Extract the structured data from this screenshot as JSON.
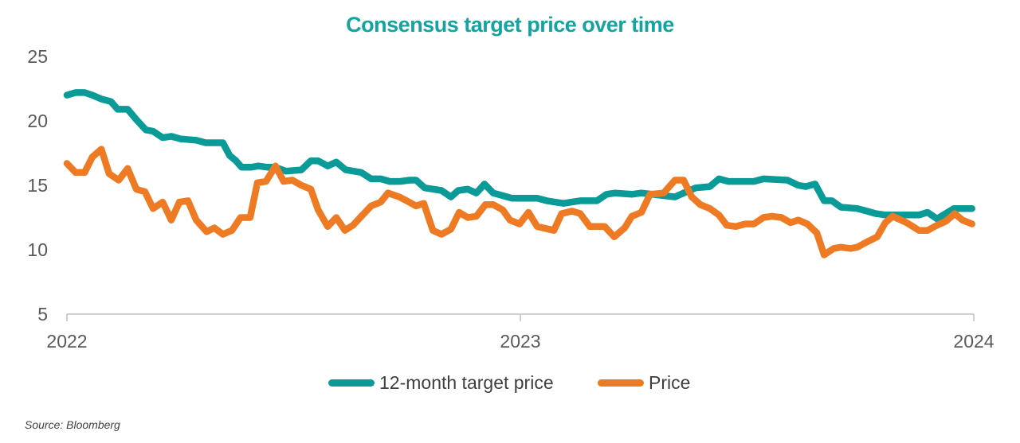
{
  "chart_data": {
    "type": "line",
    "title": "Consensus target price over time",
    "xlabel": "",
    "ylabel": "",
    "xlim": [
      2022,
      2024
    ],
    "ylim": [
      5,
      25
    ],
    "x_ticks": [
      "2022",
      "2023",
      "2024"
    ],
    "y_ticks": [
      "5",
      "10",
      "15",
      "20",
      "25"
    ],
    "grid": false,
    "legend_position": "bottom",
    "series": [
      {
        "name": "12-month target price",
        "color": "#0a9a97",
        "points": [
          [
            2022.0,
            22.0
          ],
          [
            2022.019,
            22.2
          ],
          [
            2022.039,
            22.2
          ],
          [
            2022.056,
            22.0
          ],
          [
            2022.076,
            21.7
          ],
          [
            2022.097,
            21.5
          ],
          [
            2022.112,
            20.9
          ],
          [
            2022.134,
            20.9
          ],
          [
            2022.153,
            20.1
          ],
          [
            2022.174,
            19.3
          ],
          [
            2022.19,
            19.2
          ],
          [
            2022.211,
            18.7
          ],
          [
            2022.23,
            18.8
          ],
          [
            2022.251,
            18.6
          ],
          [
            2022.285,
            18.5
          ],
          [
            2022.306,
            18.3
          ],
          [
            2022.344,
            18.3
          ],
          [
            2022.359,
            17.3
          ],
          [
            2022.373,
            16.9
          ],
          [
            2022.385,
            16.4
          ],
          [
            2022.406,
            16.4
          ],
          [
            2022.422,
            16.5
          ],
          [
            2022.443,
            16.4
          ],
          [
            2022.46,
            16.4
          ],
          [
            2022.483,
            16.1
          ],
          [
            2022.517,
            16.2
          ],
          [
            2022.538,
            16.9
          ],
          [
            2022.554,
            16.9
          ],
          [
            2022.575,
            16.5
          ],
          [
            2022.594,
            16.8
          ],
          [
            2022.615,
            16.2
          ],
          [
            2022.649,
            16.0
          ],
          [
            2022.671,
            15.5
          ],
          [
            2022.692,
            15.5
          ],
          [
            2022.712,
            15.3
          ],
          [
            2022.735,
            15.3
          ],
          [
            2022.756,
            15.4
          ],
          [
            2022.77,
            15.4
          ],
          [
            2022.789,
            14.8
          ],
          [
            2022.826,
            14.6
          ],
          [
            2022.847,
            14.1
          ],
          [
            2022.863,
            14.6
          ],
          [
            2022.884,
            14.7
          ],
          [
            2022.903,
            14.4
          ],
          [
            2022.921,
            15.1
          ],
          [
            2022.94,
            14.4
          ],
          [
            2022.981,
            14.0
          ],
          [
            2023.037,
            14.0
          ],
          [
            2023.058,
            13.8
          ],
          [
            2023.095,
            13.6
          ],
          [
            2023.132,
            13.8
          ],
          [
            2023.169,
            13.8
          ],
          [
            2023.19,
            14.3
          ],
          [
            2023.209,
            14.4
          ],
          [
            2023.246,
            14.3
          ],
          [
            2023.267,
            14.4
          ],
          [
            2023.341,
            14.1
          ],
          [
            2023.36,
            14.4
          ],
          [
            2023.387,
            14.8
          ],
          [
            2023.418,
            14.9
          ],
          [
            2023.438,
            15.5
          ],
          [
            2023.459,
            15.3
          ],
          [
            2023.515,
            15.3
          ],
          [
            2023.536,
            15.5
          ],
          [
            2023.589,
            15.4
          ],
          [
            2023.613,
            15.0
          ],
          [
            2023.629,
            14.9
          ],
          [
            2023.65,
            15.1
          ],
          [
            2023.67,
            13.8
          ],
          [
            2023.687,
            13.8
          ],
          [
            2023.707,
            13.3
          ],
          [
            2023.743,
            13.2
          ],
          [
            2023.764,
            13.0
          ],
          [
            2023.784,
            12.8
          ],
          [
            2023.805,
            12.7
          ],
          [
            2023.879,
            12.7
          ],
          [
            2023.898,
            12.9
          ],
          [
            2023.919,
            12.4
          ],
          [
            2023.956,
            13.2
          ],
          [
            2023.996,
            13.2
          ]
        ]
      },
      {
        "name": "Price",
        "color": "#ee7a24",
        "points": [
          [
            2022.0,
            16.7
          ],
          [
            2022.019,
            16.0
          ],
          [
            2022.039,
            16.0
          ],
          [
            2022.056,
            17.2
          ],
          [
            2022.076,
            17.8
          ],
          [
            2022.093,
            15.9
          ],
          [
            2022.114,
            15.4
          ],
          [
            2022.134,
            16.3
          ],
          [
            2022.153,
            14.7
          ],
          [
            2022.172,
            14.5
          ],
          [
            2022.19,
            13.2
          ],
          [
            2022.211,
            13.7
          ],
          [
            2022.23,
            12.3
          ],
          [
            2022.248,
            13.7
          ],
          [
            2022.267,
            13.8
          ],
          [
            2022.285,
            12.3
          ],
          [
            2022.308,
            11.4
          ],
          [
            2022.325,
            11.7
          ],
          [
            2022.344,
            11.2
          ],
          [
            2022.364,
            11.5
          ],
          [
            2022.383,
            12.5
          ],
          [
            2022.404,
            12.5
          ],
          [
            2022.42,
            15.2
          ],
          [
            2022.439,
            15.3
          ],
          [
            2022.46,
            16.5
          ],
          [
            2022.478,
            15.3
          ],
          [
            2022.497,
            15.4
          ],
          [
            2022.517,
            15.0
          ],
          [
            2022.538,
            14.7
          ],
          [
            2022.554,
            13.1
          ],
          [
            2022.575,
            11.8
          ],
          [
            2022.594,
            12.5
          ],
          [
            2022.613,
            11.5
          ],
          [
            2022.631,
            11.9
          ],
          [
            2022.652,
            12.7
          ],
          [
            2022.671,
            13.4
          ],
          [
            2022.692,
            13.7
          ],
          [
            2022.708,
            14.4
          ],
          [
            2022.733,
            14.1
          ],
          [
            2022.749,
            13.8
          ],
          [
            2022.77,
            13.4
          ],
          [
            2022.787,
            13.6
          ],
          [
            2022.807,
            11.5
          ],
          [
            2022.826,
            11.2
          ],
          [
            2022.847,
            11.6
          ],
          [
            2022.865,
            12.9
          ],
          [
            2022.884,
            12.5
          ],
          [
            2022.903,
            12.6
          ],
          [
            2022.923,
            13.5
          ],
          [
            2022.94,
            13.5
          ],
          [
            2022.961,
            13.1
          ],
          [
            2022.977,
            12.3
          ],
          [
            2022.998,
            12.0
          ],
          [
            2023.018,
            12.9
          ],
          [
            2023.037,
            11.8
          ],
          [
            2023.074,
            11.5
          ],
          [
            2023.091,
            12.8
          ],
          [
            2023.114,
            13.0
          ],
          [
            2023.132,
            12.8
          ],
          [
            2023.153,
            11.8
          ],
          [
            2023.186,
            11.8
          ],
          [
            2023.207,
            11.0
          ],
          [
            2023.23,
            11.7
          ],
          [
            2023.246,
            12.6
          ],
          [
            2023.267,
            12.9
          ],
          [
            2023.286,
            14.3
          ],
          [
            2023.316,
            14.4
          ],
          [
            2023.341,
            15.4
          ],
          [
            2023.36,
            15.4
          ],
          [
            2023.378,
            14.1
          ],
          [
            2023.397,
            13.5
          ],
          [
            2023.418,
            13.2
          ],
          [
            2023.438,
            12.7
          ],
          [
            2023.455,
            11.9
          ],
          [
            2023.475,
            11.8
          ],
          [
            2023.496,
            12.0
          ],
          [
            2023.515,
            12.0
          ],
          [
            2023.536,
            12.5
          ],
          [
            2023.555,
            12.6
          ],
          [
            2023.576,
            12.5
          ],
          [
            2023.596,
            12.1
          ],
          [
            2023.613,
            12.3
          ],
          [
            2023.633,
            12.0
          ],
          [
            2023.654,
            11.3
          ],
          [
            2023.67,
            9.6
          ],
          [
            2023.691,
            10.1
          ],
          [
            2023.707,
            10.2
          ],
          [
            2023.728,
            10.1
          ],
          [
            2023.743,
            10.2
          ],
          [
            2023.764,
            10.6
          ],
          [
            2023.787,
            11.0
          ],
          [
            2023.805,
            12.1
          ],
          [
            2023.821,
            12.6
          ],
          [
            2023.852,
            12.1
          ],
          [
            2023.879,
            11.5
          ],
          [
            2023.898,
            11.5
          ],
          [
            2023.919,
            11.9
          ],
          [
            2023.938,
            12.2
          ],
          [
            2023.958,
            12.8
          ],
          [
            2023.975,
            12.3
          ],
          [
            2023.996,
            12.0
          ]
        ]
      }
    ]
  },
  "source": "Source: Bloomberg"
}
